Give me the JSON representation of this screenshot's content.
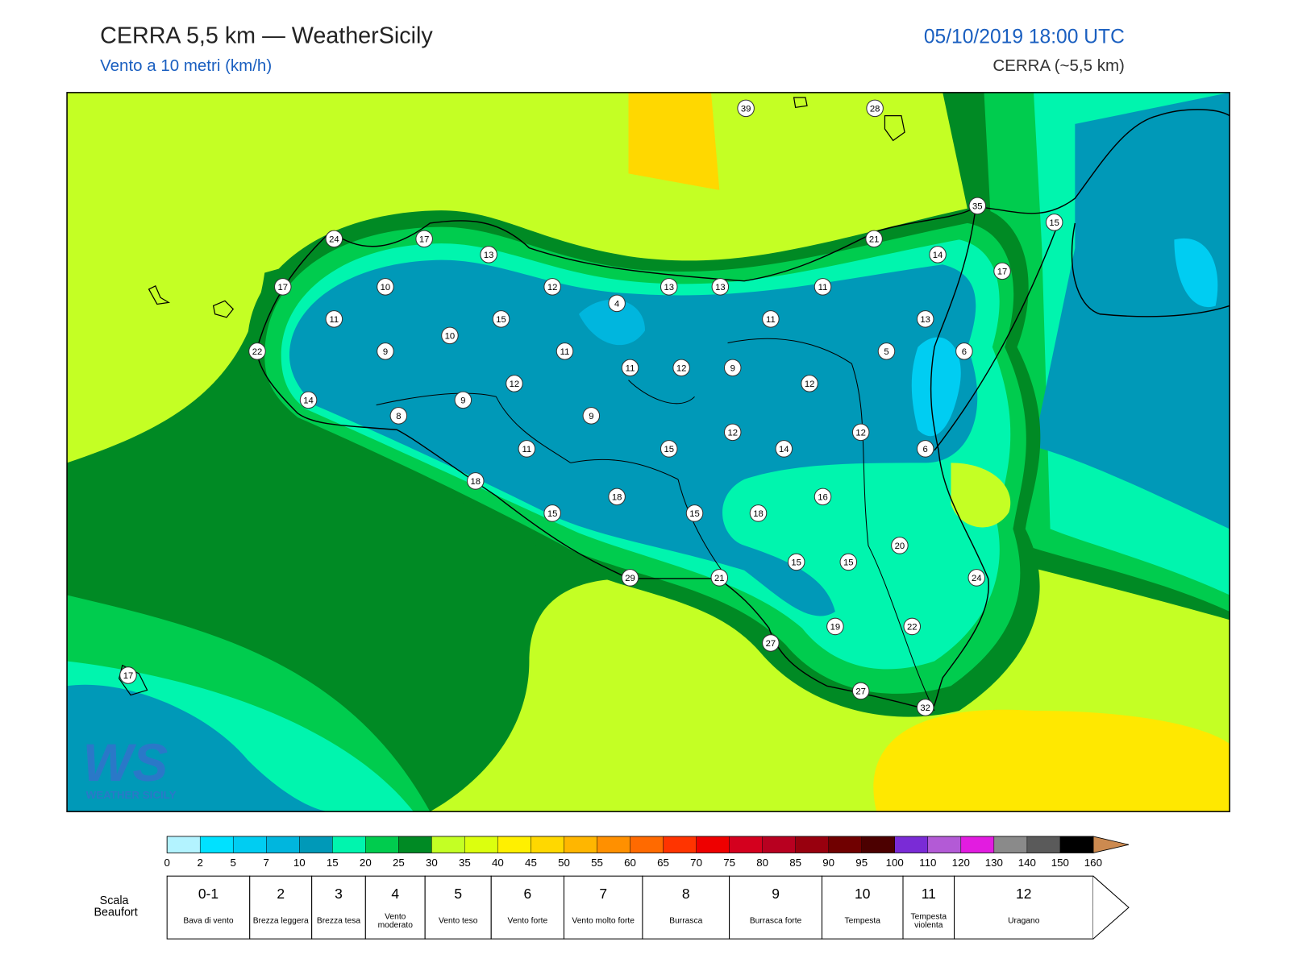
{
  "header": {
    "title": "CERRA 5,5 km — WeatherSicily",
    "subtitle": "Vento a 10 metri (km/h)",
    "datetime": "05/10/2019 18:00 UTC",
    "model": "CERRA (~5,5 km)"
  },
  "map": {
    "logo": "WEATHER SICILY",
    "stations": [
      39,
      28,
      35,
      15,
      24,
      17,
      13,
      21,
      14,
      17,
      17,
      10,
      12,
      13,
      13,
      11,
      4,
      11,
      15,
      11,
      13,
      10,
      22,
      9,
      11,
      11,
      12,
      9,
      5,
      6,
      12,
      12,
      14,
      9,
      8,
      9,
      12,
      12,
      11,
      15,
      14,
      6,
      18,
      18,
      16,
      15,
      15,
      18,
      20,
      15,
      15,
      24,
      29,
      21,
      19,
      22,
      27,
      17,
      27,
      32
    ]
  },
  "colorbar": {
    "ticks": [
      0,
      2,
      5,
      7,
      10,
      15,
      20,
      25,
      30,
      35,
      40,
      45,
      50,
      55,
      60,
      65,
      70,
      75,
      80,
      85,
      90,
      95,
      100,
      110,
      120,
      130,
      140,
      150,
      160
    ],
    "colors": [
      "#b3f3ff",
      "#00e1ff",
      "#00cdf2",
      "#00b6de",
      "#0099b8",
      "#00f5ae",
      "#00cc4e",
      "#008a24",
      "#c4ff24",
      "#dcff0e",
      "#fff000",
      "#ffd800",
      "#ffb600",
      "#ff9000",
      "#ff6a00",
      "#ff3400",
      "#ee0000",
      "#d4001e",
      "#b80020",
      "#98000e",
      "#700000",
      "#4c0000",
      "#7a2bd6",
      "#b35ad6",
      "#e21ce0",
      "#8a8a8a",
      "#5a5a5a",
      "#000000",
      "#8a4a2a",
      "#cc8a50"
    ]
  },
  "beaufort": {
    "title": "Scala Beaufort",
    "levels": [
      {
        "force": "0-1",
        "label": "Bava di vento"
      },
      {
        "force": "2",
        "label": "Brezza leggera"
      },
      {
        "force": "3",
        "label": "Brezza tesa"
      },
      {
        "force": "4",
        "label": "Vento moderato"
      },
      {
        "force": "5",
        "label": "Vento teso"
      },
      {
        "force": "6",
        "label": "Vento forte"
      },
      {
        "force": "7",
        "label": "Vento molto forte"
      },
      {
        "force": "8",
        "label": "Burrasca"
      },
      {
        "force": "9",
        "label": "Burrasca forte"
      },
      {
        "force": "10",
        "label": "Tempesta"
      },
      {
        "force": "11",
        "label": "Tempesta violenta"
      },
      {
        "force": "12",
        "label": "Uragano"
      }
    ]
  }
}
